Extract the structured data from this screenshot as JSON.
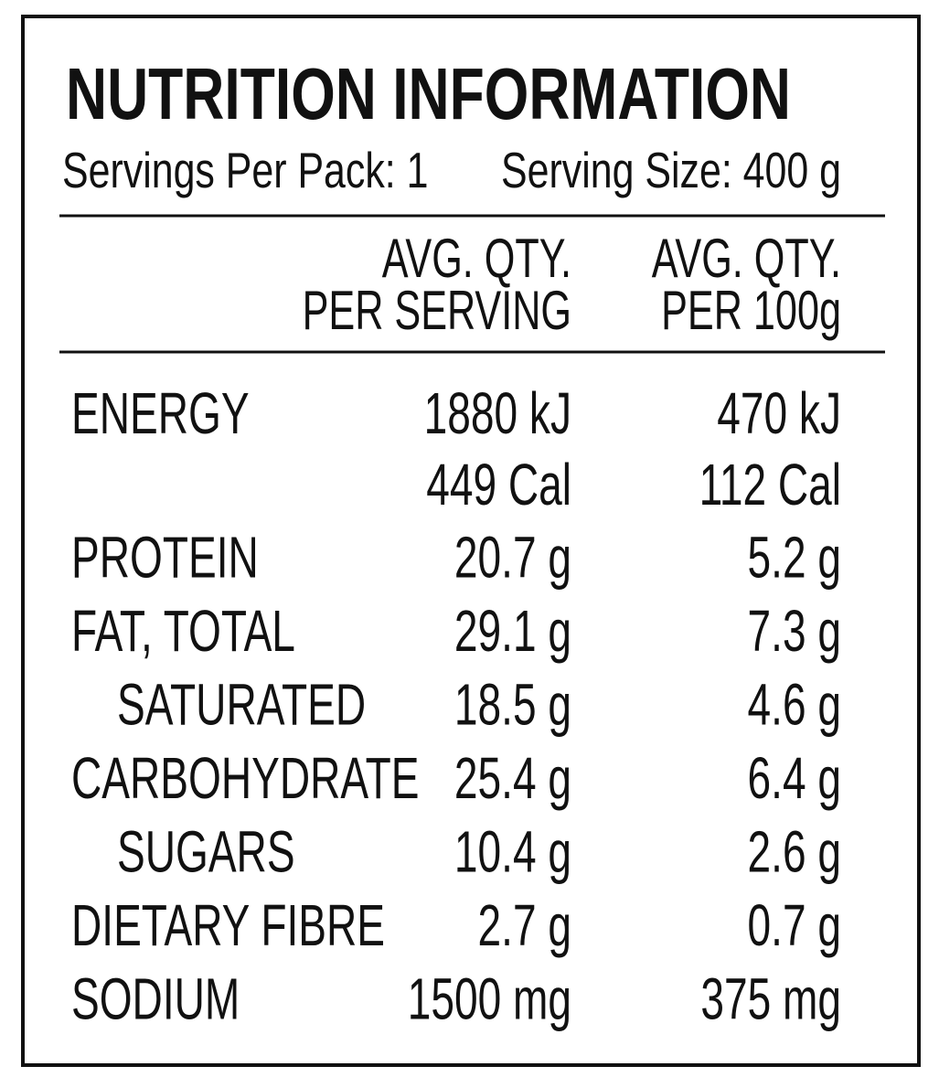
{
  "header": {
    "title": "NUTRITION INFORMATION",
    "servings_per_pack": "Servings Per Pack: 1",
    "serving_size": "Serving Size: 400 g"
  },
  "table": {
    "columns": [
      [
        "AVG. QTY.",
        "PER SERVING"
      ],
      [
        "AVG. QTY.",
        "PER 100g"
      ]
    ],
    "rows": [
      {
        "label": "ENERGY",
        "per_serving": [
          "1880 kJ",
          "449 Cal"
        ],
        "per_100g": [
          "470 kJ",
          "112 Cal"
        ]
      },
      {
        "label": "PROTEIN",
        "per_serving": "20.7 g",
        "per_100g": "5.2 g"
      },
      {
        "label": "FAT, TOTAL",
        "per_serving": "29.1 g",
        "per_100g": "7.3 g",
        "sub_rows": [
          {
            "label": "SATURATED",
            "per_serving": "18.5 g",
            "per_100g": "4.6 g"
          }
        ]
      },
      {
        "label": "CARBOHYDRATE",
        "per_serving": "25.4 g",
        "per_100g": "6.4 g",
        "sub_rows": [
          {
            "label": "SUGARS",
            "per_serving": "10.4 g",
            "per_100g": "2.6 g"
          }
        ]
      },
      {
        "label": "DIETARY FIBRE",
        "per_serving": "2.7 g",
        "per_100g": "0.7 g"
      },
      {
        "label": "SODIUM",
        "per_serving": "1500 mg",
        "per_100g": "375 mg"
      }
    ]
  }
}
